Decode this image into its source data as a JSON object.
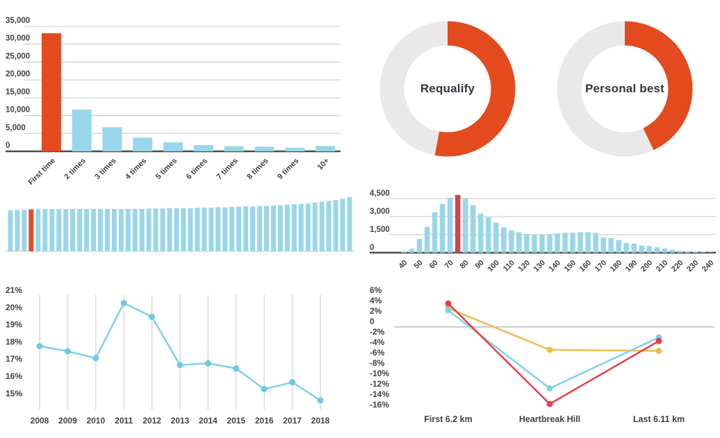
{
  "colors": {
    "bar_blue": "#9ad6e9",
    "accent_orange": "#e34b1e",
    "highlight_red": "#d24451",
    "line_cyan": "#7fd0e8",
    "dot_cyan": "#6ec8e5",
    "line_red": "#e63e45",
    "line_yellow": "#f0bd4c",
    "donut_gray": "#e9e9e9",
    "gridline": "#d0d0d0",
    "axis_dark": "#4a4a4a",
    "vgridline": "#d8d8d8",
    "zero_line": "#b8b8b8",
    "text_dark": "#3d4046"
  },
  "chart_data": [
    {
      "id": "times-run-bar",
      "type": "bar",
      "title": "",
      "categories": [
        "First time",
        "2 times",
        "3 times",
        "4 times",
        "5 times",
        "6 times",
        "7 times",
        "8 times",
        "9 times",
        "10+"
      ],
      "values": [
        33100,
        11700,
        6750,
        3830,
        2530,
        1750,
        1400,
        1300,
        1000,
        1500
      ],
      "highlight_index": 0,
      "ylim": [
        0,
        35000
      ],
      "ytick_values": [
        0,
        5000,
        10000,
        15000,
        20000,
        25000,
        30000,
        35000
      ],
      "ytick_labels": [
        "0",
        "5,000",
        "10,000",
        "15,000",
        "20,000",
        "25,000",
        "30,000",
        "35,000"
      ],
      "grid": true,
      "legend": "none"
    },
    {
      "id": "requalify-donut",
      "type": "pie",
      "title": "Requalify",
      "values": [
        53,
        47
      ],
      "slice_colors": [
        "accent_orange",
        "donut_gray"
      ],
      "start_angle_deg": 0,
      "direction": "clockwise"
    },
    {
      "id": "personal-best-donut",
      "type": "pie",
      "title": "Personal best",
      "values": [
        43,
        57
      ],
      "slice_colors": [
        "accent_orange",
        "donut_gray"
      ],
      "start_angle_deg": 0,
      "direction": "clockwise"
    },
    {
      "id": "strip-bar",
      "type": "bar",
      "title": "",
      "values": [
        97,
        98,
        98,
        99,
        100,
        100,
        100,
        100,
        100,
        100,
        100,
        100,
        100,
        100,
        100,
        100,
        100,
        100,
        100,
        100,
        101,
        101,
        101,
        102,
        102,
        102,
        102,
        103,
        103,
        103,
        104,
        104,
        105,
        105,
        106,
        106,
        107,
        107,
        108,
        109,
        110,
        111,
        112,
        113,
        115,
        117,
        119,
        121,
        124,
        128
      ],
      "highlight_index": 3,
      "axis_labels": "none",
      "grid": false
    },
    {
      "id": "finish-time-histogram",
      "type": "bar",
      "title": "",
      "x_start": 40,
      "x_step": 5,
      "values": [
        60,
        330,
        1150,
        2150,
        3350,
        4050,
        4550,
        4800,
        4500,
        3950,
        3250,
        2950,
        2500,
        2100,
        1850,
        1700,
        1550,
        1500,
        1500,
        1550,
        1600,
        1650,
        1650,
        1700,
        1700,
        1650,
        1250,
        1200,
        1050,
        800,
        750,
        600,
        550,
        450,
        350,
        250,
        150,
        100,
        80,
        50,
        30
      ],
      "highlight_index": 7,
      "ylim": [
        0,
        4500
      ],
      "ytick_values": [
        0,
        1500,
        3000,
        4500
      ],
      "ytick_labels": [
        "0",
        "1,500",
        "3,000",
        "4,500"
      ],
      "xtick_labels": [
        "40",
        "50",
        "60",
        "70",
        "80",
        "90",
        "100",
        "110",
        "120",
        "130",
        "140",
        "150",
        "160",
        "170",
        "180",
        "190",
        "200",
        "210",
        "220",
        "230",
        "240"
      ],
      "grid": true
    },
    {
      "id": "percent-by-year-line",
      "type": "line",
      "title": "",
      "categories": [
        "2008",
        "2009",
        "2010",
        "2011",
        "2012",
        "2013",
        "2014",
        "2015",
        "2016",
        "2017",
        "2018"
      ],
      "values": [
        17.75,
        17.45,
        17.05,
        20.25,
        19.45,
        16.65,
        16.75,
        16.45,
        15.25,
        15.65,
        14.6
      ],
      "ylim": [
        15,
        21
      ],
      "ytick_values": [
        21,
        20,
        19,
        18,
        17,
        16,
        15
      ],
      "ytick_labels": [
        "21%",
        "20%",
        "19%",
        "18%",
        "17%",
        "16%",
        "15%"
      ],
      "grid": "vertical-only",
      "legend": "none"
    },
    {
      "id": "pace-splits-line",
      "type": "line",
      "title": "",
      "categories": [
        "First 6.2 km",
        "Heartbreak Hill",
        "Last 6.11 km"
      ],
      "series": [
        {
          "name": "yellow",
          "color": "line_yellow",
          "values": [
            3.6,
            -4.4,
            -4.6
          ]
        },
        {
          "name": "cyan",
          "color": "line_cyan",
          "values": [
            3.2,
            -11.8,
            -2.0
          ]
        },
        {
          "name": "red",
          "color": "line_red",
          "values": [
            4.5,
            -14.8,
            -2.7
          ]
        }
      ],
      "ylim": [
        -16,
        6
      ],
      "ytick_values": [
        6,
        4,
        2,
        0,
        -2,
        -4,
        -6,
        -8,
        -10,
        -12,
        -14,
        -16
      ],
      "ytick_labels": [
        "6%",
        "4%",
        "2%",
        "0",
        "-2%",
        "-4%",
        "-6%",
        "-8%",
        "-10%",
        "-12%",
        "-14%",
        "-16%"
      ],
      "zero_line": true,
      "grid": false,
      "legend": "none"
    }
  ],
  "donut_titles": {
    "requalify": "Requalify",
    "personal_best": "Personal best"
  }
}
